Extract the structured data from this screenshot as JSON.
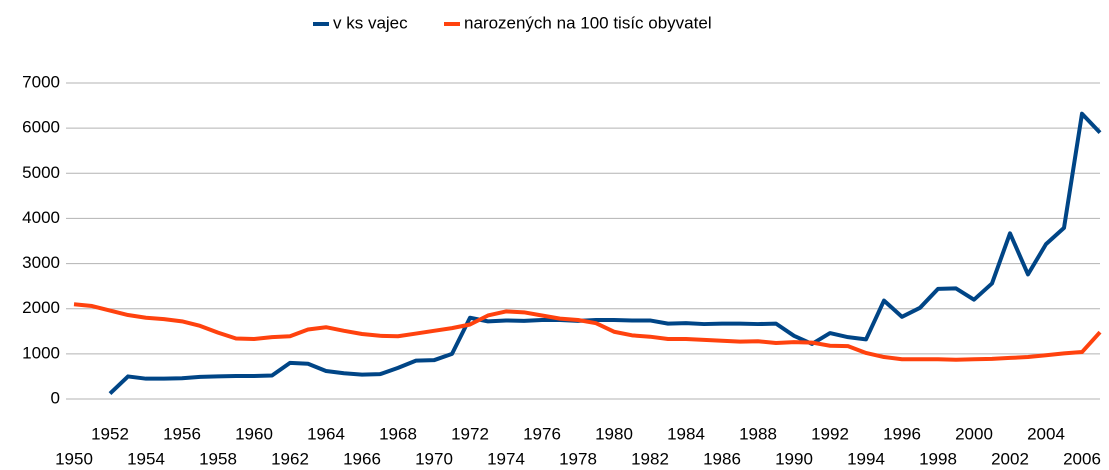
{
  "chart_data": {
    "type": "line",
    "categories": [
      "1950",
      null,
      "1952",
      null,
      "1954",
      null,
      "1956",
      null,
      "1958",
      null,
      "1960",
      null,
      "1962",
      null,
      "1964",
      null,
      "1966",
      null,
      "1968",
      null,
      "1970",
      null,
      "1972",
      null,
      "1974",
      null,
      "1976",
      null,
      "1978",
      null,
      "1980",
      null,
      "1982",
      null,
      "1984",
      null,
      "1986",
      null,
      "1988",
      null,
      "1990",
      null,
      "1992",
      null,
      "1994",
      null,
      "1996",
      null,
      "1998",
      null,
      "2000",
      null,
      "2002",
      null,
      "2004",
      null,
      "2006",
      null
    ],
    "series": [
      {
        "name": "v ks vajec",
        "color": "#004586",
        "values": [
          null,
          null,
          120,
          500,
          450,
          450,
          460,
          490,
          500,
          510,
          510,
          520,
          800,
          780,
          620,
          570,
          540,
          550,
          690,
          850,
          860,
          1000,
          1800,
          1720,
          1740,
          1730,
          1750,
          1750,
          1730,
          1750,
          1750,
          1740,
          1740,
          1670,
          1680,
          1660,
          1670,
          1670,
          1660,
          1670,
          1400,
          1220,
          1460,
          1370,
          1320,
          2180,
          1820,
          2020,
          2440,
          2450,
          2200,
          2560,
          3670,
          2760,
          3430,
          3790,
          6320,
          5900
        ]
      },
      {
        "name": "narozených na 100 tisíc obyvatel",
        "color": "#ff420e",
        "values": [
          2100,
          2060,
          1960,
          1860,
          1800,
          1770,
          1720,
          1620,
          1470,
          1340,
          1330,
          1370,
          1390,
          1540,
          1590,
          1510,
          1440,
          1400,
          1390,
          1450,
          1510,
          1570,
          1650,
          1850,
          1940,
          1920,
          1850,
          1780,
          1750,
          1680,
          1490,
          1410,
          1380,
          1330,
          1330,
          1310,
          1290,
          1270,
          1280,
          1240,
          1260,
          1250,
          1180,
          1170,
          1020,
          930,
          880,
          880,
          880,
          870,
          880,
          890,
          910,
          930,
          970,
          1010,
          1040,
          1480
        ]
      }
    ],
    "ylim": [
      0,
      7000
    ],
    "yticks": [
      0,
      1000,
      2000,
      3000,
      4000,
      5000,
      6000,
      7000
    ],
    "grid": true,
    "legend": "top"
  }
}
